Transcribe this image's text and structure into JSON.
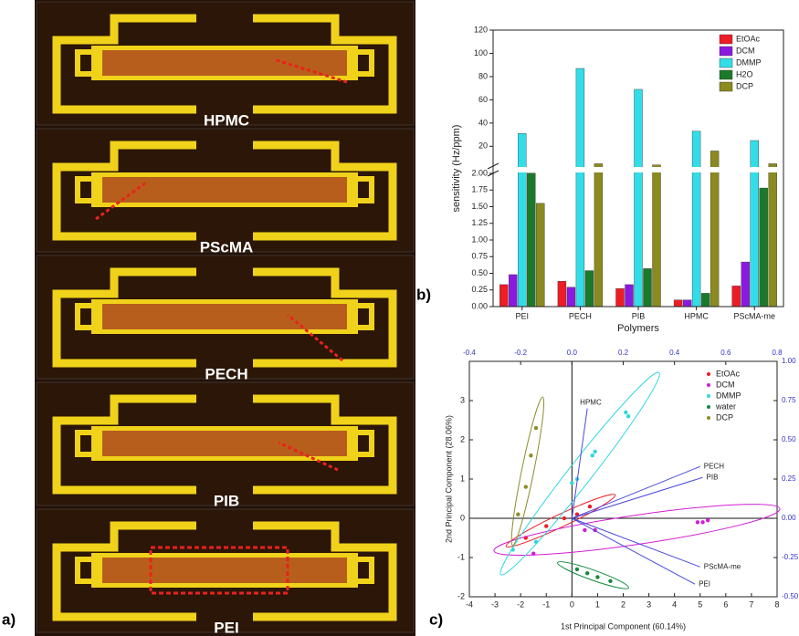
{
  "figure": {
    "panel_labels": [
      "a)",
      "b)",
      "c)"
    ],
    "micrographs": [
      "HPMC",
      "PScMA",
      "PECH",
      "PIB",
      "PEI"
    ]
  },
  "chart_data": [
    {
      "type": "bar",
      "x_label": "Polymers",
      "y_label": "sensitivity (Hz/ppm)",
      "categories": [
        "PEI",
        "PECH",
        "PIB",
        "HPMC",
        "PScMA-me"
      ],
      "series": [
        {
          "name": "EtOAc",
          "color": "#ee1c25",
          "values": [
            0.33,
            0.38,
            0.27,
            0.1,
            0.31
          ]
        },
        {
          "name": "DCM",
          "color": "#8b1ae0",
          "values": [
            0.48,
            0.29,
            0.33,
            0.1,
            0.67
          ]
        },
        {
          "name": "DMMP",
          "color": "#33dde8",
          "values": [
            31,
            87,
            69,
            33,
            25
          ]
        },
        {
          "name": "H2O",
          "color": "#1b7a2a",
          "values": [
            2.03,
            0.54,
            0.57,
            0.2,
            1.78
          ]
        },
        {
          "name": "DCP",
          "color": "#8a8a1f",
          "values": [
            1.55,
            5,
            4,
            16,
            5
          ]
        }
      ],
      "ylim": [
        0,
        120
      ],
      "axis_break": [
        2,
        3
      ],
      "yticks": [
        {
          "value": 0,
          "label": "0.00"
        },
        0.25,
        {
          "value": 0.5,
          "label": "0.50"
        },
        0.75,
        {
          "value": 1,
          "label": "1.00"
        },
        1.25,
        {
          "value": 1.5,
          "label": "1.50"
        },
        1.75,
        {
          "value": 2,
          "label": "2.00"
        },
        20,
        40,
        60,
        80,
        100,
        120
      ],
      "legend": "upper right"
    },
    {
      "type": "scatter",
      "x_label": "1st Principal Component (60.14%)",
      "y_label": "2nd Principal Component (28.06%)",
      "xlim": [
        -4,
        8
      ],
      "xticks": [
        -4,
        -3,
        -2,
        -1,
        0,
        1,
        2,
        3,
        4,
        5,
        6,
        7,
        8
      ],
      "ylim": [
        -2,
        4
      ],
      "yticks": [
        -2,
        -1,
        0,
        1,
        2,
        3
      ],
      "x2lim": [
        -0.4,
        0.8
      ],
      "x2ticks": [
        -0.4,
        -0.2,
        {
          "value": 0,
          "label": "0.0"
        },
        0.2,
        0.4,
        0.6,
        0.8
      ],
      "y2lim": [
        -0.5,
        1.0
      ],
      "y2ticks": [
        {
          "value": -0.5,
          "label": "-0.50"
        },
        -0.25,
        {
          "value": 0,
          "label": "0.00"
        },
        0.25,
        {
          "value": 0.5,
          "label": "0.50"
        },
        0.75,
        {
          "value": 1,
          "label": "1.00"
        }
      ],
      "series": [
        {
          "name": "EtOAc",
          "color": "#ee1c25",
          "x": [
            -1.8,
            -1.0,
            -0.3,
            0.2,
            0.7
          ],
          "values": [
            -0.5,
            -0.2,
            0.0,
            0.1,
            0.3
          ]
        },
        {
          "name": "DCM",
          "color": "#d21dd2",
          "x": [
            -1.5,
            0.5,
            0.9,
            4.9,
            5.1,
            5.3
          ],
          "values": [
            -0.9,
            -0.3,
            -0.3,
            -0.1,
            -0.1,
            -0.05
          ]
        },
        {
          "name": "DMMP",
          "color": "#2fd8e0",
          "x": [
            -2.3,
            -1.4,
            0.0,
            0.2,
            0.8,
            0.9,
            2.1,
            2.2
          ],
          "values": [
            -0.8,
            -0.6,
            0.9,
            1.0,
            1.6,
            1.7,
            2.7,
            2.6
          ]
        },
        {
          "name": "water",
          "color": "#128a3a",
          "x": [
            0.2,
            0.6,
            1.0,
            1.5
          ],
          "values": [
            -1.3,
            -1.4,
            -1.5,
            -1.6
          ]
        },
        {
          "name": "DCP",
          "color": "#8c8c28",
          "x": [
            -1.4,
            -1.6,
            -1.8,
            -2.1
          ],
          "values": [
            2.3,
            1.6,
            0.8,
            0.1
          ]
        }
      ],
      "loadings": [
        {
          "name": "HPMC",
          "x": 0.06,
          "y": 0.7
        },
        {
          "name": "PECH",
          "x": 0.5,
          "y": 0.33
        },
        {
          "name": "PIB",
          "x": 0.51,
          "y": 0.26
        },
        {
          "name": "PScMA-me",
          "x": 0.5,
          "y": -0.31
        },
        {
          "name": "PEI",
          "x": 0.48,
          "y": -0.42
        }
      ],
      "loading_color": "#4a48e0",
      "legend": "upper right"
    }
  ]
}
